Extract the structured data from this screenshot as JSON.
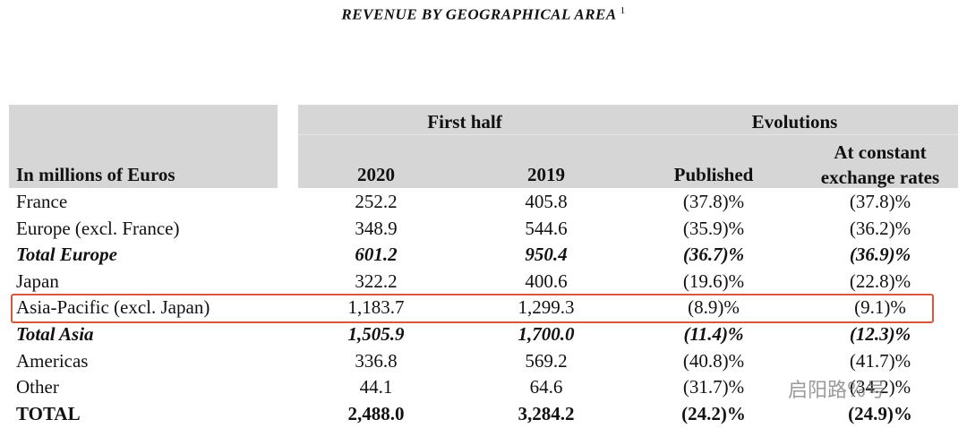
{
  "header": {
    "title": "REVENUE BY GEOGRAPHICAL AREA",
    "footnote": "1"
  },
  "table": {
    "groups": [
      "First half",
      "Evolutions"
    ],
    "columns": [
      "In millions of Euros",
      "2020",
      "2019",
      "Published",
      "At constant exchange rates"
    ],
    "rows": [
      [
        "France",
        "252.2",
        "405.8",
        "(37.8)%",
        "(37.8)%"
      ],
      [
        "Europe (excl. France)",
        "348.9",
        "544.6",
        "(35.9)%",
        "(36.2)%"
      ],
      [
        "Total Europe",
        "601.2",
        "950.4",
        "(36.7)%",
        "(36.9)%"
      ],
      [
        "Japan",
        "322.2",
        "400.6",
        "(19.6)%",
        "(22.8)%"
      ],
      [
        "Asia-Pacific (excl. Japan)",
        "1,183.7",
        "1,299.3",
        "(8.9)%",
        "(9.1)%"
      ],
      [
        "Total Asia",
        "1,505.9",
        "1,700.0",
        "(11.4)%",
        "(12.3)%"
      ],
      [
        "Americas",
        "336.8",
        "569.2",
        "(40.8)%",
        "(41.7)%"
      ],
      [
        "Other",
        "44.1",
        "64.6",
        "(31.7)%",
        "(34.2)%"
      ],
      [
        "TOTAL",
        "2,488.0",
        "3,284.2",
        "(24.2)%",
        "(24.9)%"
      ]
    ]
  },
  "watermark": "启阳路%号"
}
